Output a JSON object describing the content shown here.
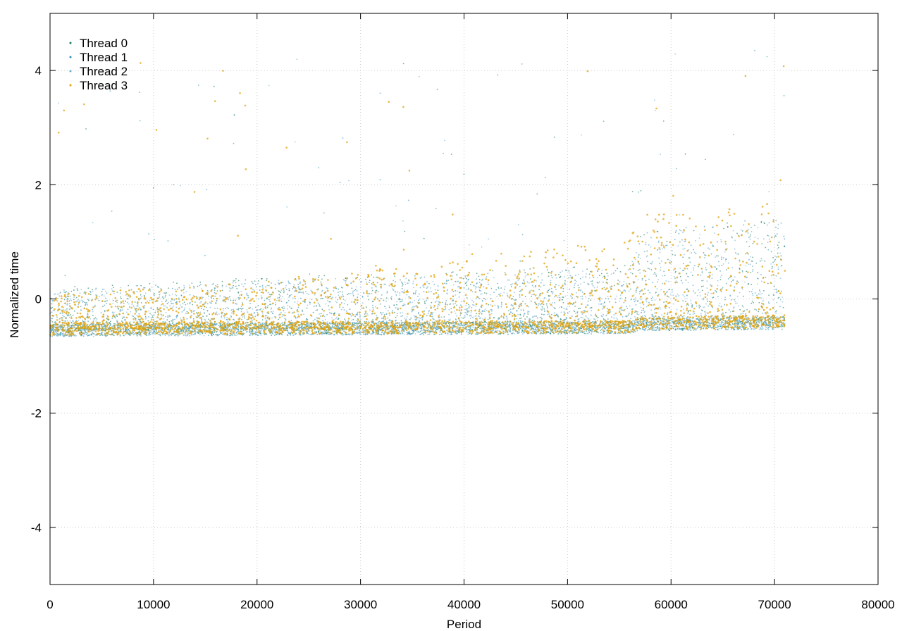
{
  "chart_data": {
    "type": "scatter",
    "xlabel": "Period",
    "ylabel": "Normalized time",
    "xlim": [
      0,
      80000
    ],
    "ylim": [
      -5,
      5
    ],
    "x_ticks": [
      0,
      10000,
      20000,
      30000,
      40000,
      50000,
      60000,
      70000,
      80000
    ],
    "x_tick_labels": [
      "0",
      "10000",
      "20000",
      "30000",
      "40000",
      "50000",
      "60000",
      "70000",
      "80000"
    ],
    "y_ticks": [
      -4,
      -2,
      0,
      2,
      4
    ],
    "y_tick_labels": [
      "-4",
      "-2",
      "0",
      "2",
      "4"
    ],
    "grid": true,
    "legend_position": "top-left",
    "data_x_range": [
      0,
      71000
    ],
    "series": [
      {
        "name": "Thread 0",
        "color": "#1a7a5a",
        "marker": "dot",
        "baseline": [
          [
            0,
            -0.55
          ],
          [
            30000,
            -0.52
          ],
          [
            56000,
            -0.5
          ],
          [
            57000,
            -0.45
          ],
          [
            71000,
            -0.42
          ]
        ],
        "spread": [
          [
            0,
            0.75
          ],
          [
            20000,
            0.9
          ],
          [
            40000,
            1.0
          ],
          [
            56000,
            1.1
          ],
          [
            57000,
            1.6
          ],
          [
            71000,
            1.9
          ]
        ]
      },
      {
        "name": "Thread 1",
        "color": "#2f8fb5",
        "marker": "dot",
        "baseline": [
          [
            0,
            -0.55
          ],
          [
            30000,
            -0.52
          ],
          [
            56000,
            -0.5
          ],
          [
            57000,
            -0.45
          ],
          [
            71000,
            -0.42
          ]
        ],
        "spread": [
          [
            0,
            0.7
          ],
          [
            20000,
            0.85
          ],
          [
            40000,
            0.95
          ],
          [
            56000,
            1.05
          ],
          [
            57000,
            1.6
          ],
          [
            71000,
            1.9
          ]
        ]
      },
      {
        "name": "Thread 2",
        "color": "#6aaed0",
        "marker": "dot",
        "baseline": [
          [
            0,
            -0.55
          ],
          [
            30000,
            -0.52
          ],
          [
            56000,
            -0.5
          ],
          [
            57000,
            -0.45
          ],
          [
            71000,
            -0.42
          ]
        ],
        "spread": [
          [
            0,
            0.7
          ],
          [
            20000,
            0.85
          ],
          [
            40000,
            0.95
          ],
          [
            56000,
            1.05
          ],
          [
            57000,
            1.5
          ],
          [
            71000,
            1.8
          ]
        ]
      },
      {
        "name": "Thread 3",
        "color": "#e0a10a",
        "marker": "dot",
        "baseline": [
          [
            0,
            -0.52
          ],
          [
            30000,
            -0.5
          ],
          [
            56000,
            -0.48
          ],
          [
            57000,
            -0.42
          ],
          [
            71000,
            -0.4
          ]
        ],
        "spread": [
          [
            0,
            0.6
          ],
          [
            20000,
            0.8
          ],
          [
            40000,
            1.3
          ],
          [
            56000,
            1.5
          ],
          [
            57000,
            1.9
          ],
          [
            71000,
            2.1
          ]
        ]
      }
    ]
  }
}
